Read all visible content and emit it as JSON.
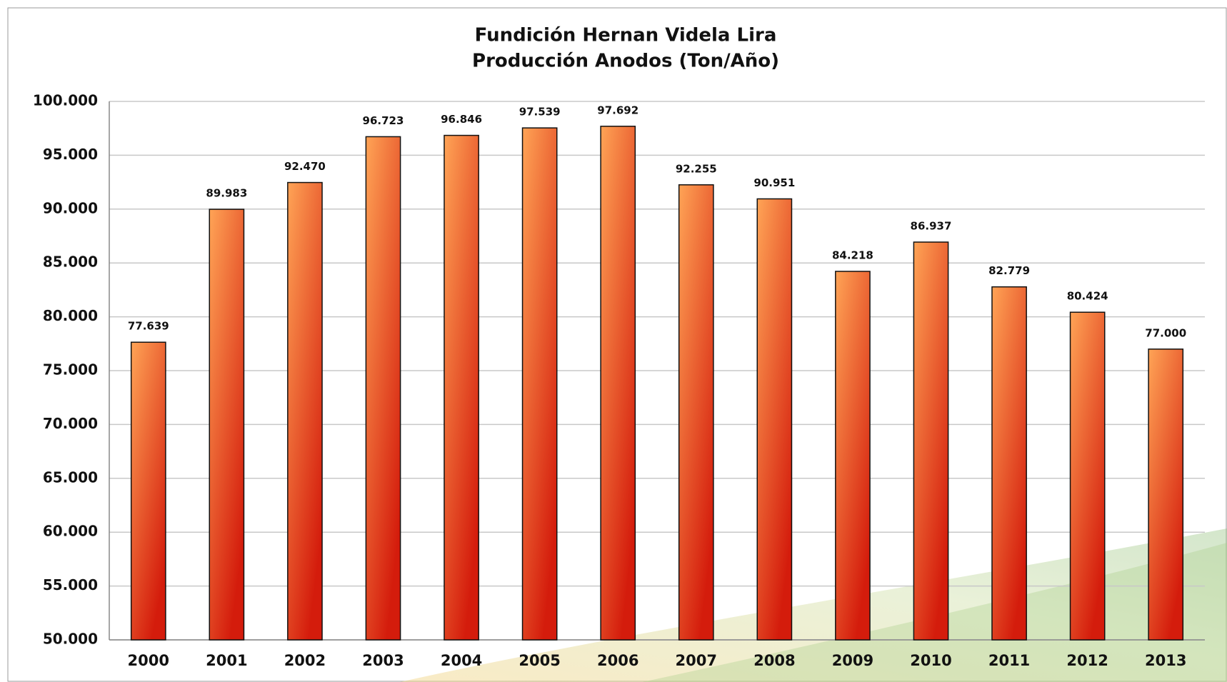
{
  "chart_data": {
    "type": "bar",
    "title": "Fundición Hernan Videla Lira",
    "subtitle": "Producción Anodos (Ton/Año)",
    "categories": [
      "2000",
      "2001",
      "2002",
      "2003",
      "2004",
      "2005",
      "2006",
      "2007",
      "2008",
      "2009",
      "2010",
      "2011",
      "2012",
      "2013"
    ],
    "values": [
      77639,
      89983,
      92470,
      96723,
      96846,
      97539,
      97692,
      92255,
      90951,
      84218,
      86937,
      82779,
      80424,
      77000
    ],
    "value_labels": [
      "77.639",
      "89.983",
      "92.470",
      "96.723",
      "96.846",
      "97.539",
      "97.692",
      "92.255",
      "90.951",
      "84.218",
      "86.937",
      "82.779",
      "80.424",
      "77.000"
    ],
    "color": "#d41c0c",
    "ylim": [
      50000,
      100000
    ],
    "yticks": [
      {
        "value": 50000,
        "label": "50.000"
      },
      {
        "value": 55000,
        "label": "55.000"
      },
      {
        "value": 60000,
        "label": "60.000"
      },
      {
        "value": 65000,
        "label": "65.000"
      },
      {
        "value": 70000,
        "label": "70.000"
      },
      {
        "value": 75000,
        "label": "75.000"
      },
      {
        "value": 80000,
        "label": "80.000"
      },
      {
        "value": 85000,
        "label": "85.000"
      },
      {
        "value": 90000,
        "label": "90.000"
      },
      {
        "value": 95000,
        "label": "95.000"
      },
      {
        "value": 100000,
        "label": "100.000"
      }
    ],
    "grid": true
  }
}
